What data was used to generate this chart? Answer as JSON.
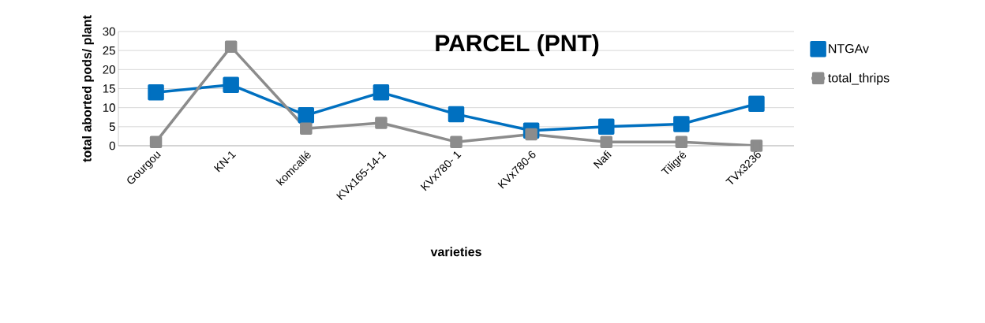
{
  "chart_data": {
    "type": "line",
    "title": "PARCEL (PNT)",
    "xlabel": "varieties",
    "ylabel": "total aborted pods/ plant",
    "categories": [
      "Gourgou",
      "KN-1",
      "komcallé",
      "KVx165-14-1",
      "KVx780- 1",
      "KVx780-6",
      "Nafi",
      "Tiligré",
      "TVx3236"
    ],
    "series": [
      {
        "name": "NTGAv",
        "color": "#0070c0",
        "values": [
          14,
          16,
          8,
          14,
          8.3,
          4,
          5,
          5.7,
          11
        ]
      },
      {
        "name": "total_thrips",
        "color": "#8c8c8c",
        "values": [
          1,
          26,
          4.5,
          6,
          1,
          3,
          1,
          1,
          0
        ]
      }
    ],
    "ylim": [
      0,
      30
    ],
    "yticks": [
      0,
      5,
      10,
      15,
      20,
      25,
      30
    ],
    "grid": "y",
    "legend": "right",
    "marker": "square",
    "line_style": "solid"
  }
}
